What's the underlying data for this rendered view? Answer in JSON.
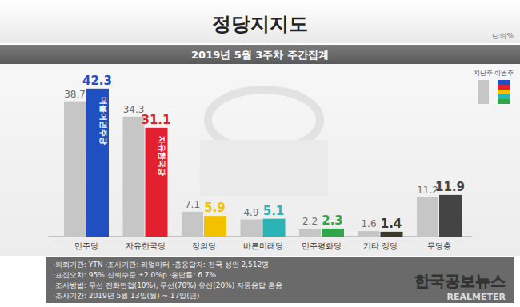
{
  "chart_data": {
    "type": "bar",
    "title": "정당지지도",
    "subtitle": "2019년 5월 3주차 주간집계",
    "unit": "단위%",
    "categories": [
      "민주당",
      "자유한국당",
      "정의당",
      "바른미래당",
      "민주평화당",
      "기타 정당",
      "무당층"
    ],
    "series": [
      {
        "name": "지난주",
        "color": "#c6c6c6",
        "values": [
          38.7,
          34.3,
          7.1,
          4.9,
          2.2,
          1.6,
          11.2
        ]
      },
      {
        "name": "이번주",
        "colors": [
          "#1f4fc1",
          "#e3202f",
          "#f2c200",
          "#2bb3b6",
          "#2fa64a",
          "#3a3a2a",
          "#444444"
        ],
        "values": [
          42.3,
          31.1,
          5.9,
          5.1,
          2.3,
          1.4,
          11.9
        ]
      }
    ],
    "bar_labels": [
      "더불어민주당",
      "자유한국당",
      null,
      null,
      null,
      null,
      null
    ],
    "ylim": [
      0,
      45
    ],
    "yticks": [
      0
    ],
    "grid": false,
    "data_labels": true,
    "tick_labels": "x",
    "legend": "top-right",
    "notes": [
      "·의뢰기관: YTN ·조사기관: 리얼미터 ·총응답자: 전국 성인 2,512명",
      "·표집오차: 95% 신뢰수준 ±2.0%p ·응답률: 6.7%",
      "·조사방법: 무선 전화면접(10%), 무선(70%)·유선(20%) 자동응답 혼용",
      "·조사기간: 2019년 5월 13일(월) ~ 17일(금)"
    ],
    "watermark": [
      "한국공보뉴스",
      "REALMETER"
    ]
  }
}
